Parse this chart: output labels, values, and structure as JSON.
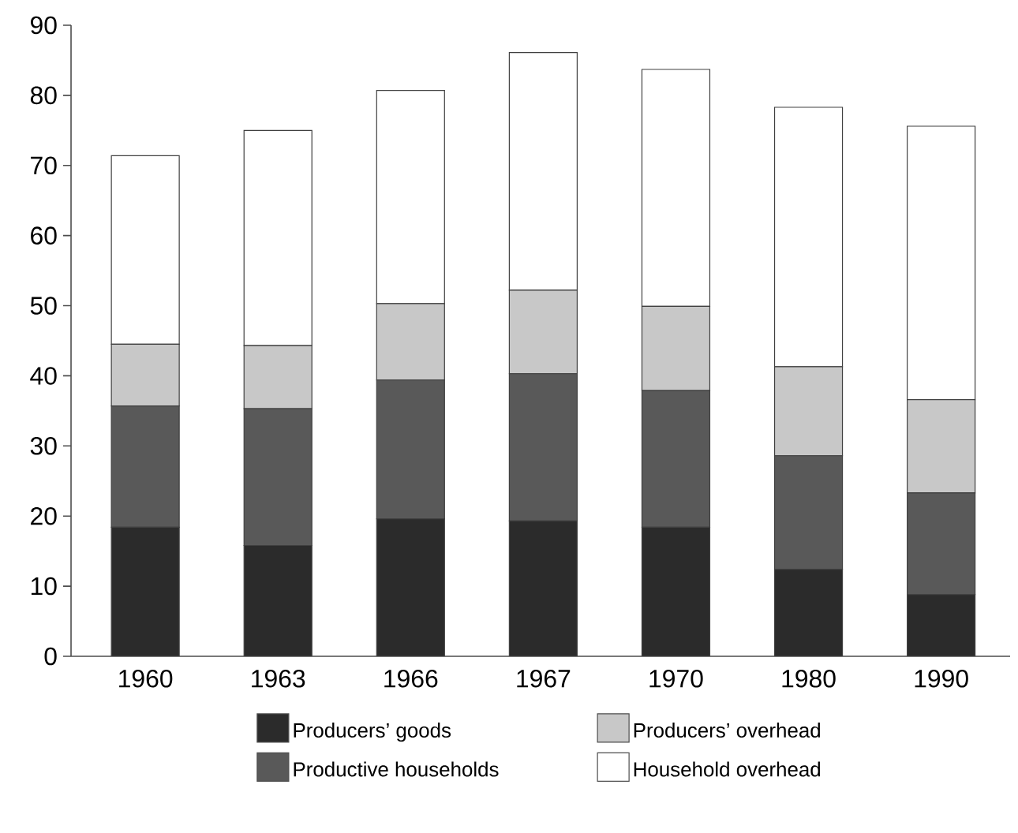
{
  "chart_data": {
    "type": "bar",
    "stacked": true,
    "categories": [
      "1960",
      "1963",
      "1966",
      "1967",
      "1970",
      "1980",
      "1990"
    ],
    "series": [
      {
        "name": "Producers’ goods",
        "color": "#2b2b2b",
        "values": [
          18.4,
          15.8,
          19.6,
          19.3,
          18.4,
          12.4,
          8.8
        ]
      },
      {
        "name": "Productive households",
        "color": "#595959",
        "values": [
          17.3,
          19.5,
          19.8,
          21.0,
          19.5,
          16.2,
          14.5
        ]
      },
      {
        "name": "Producers’ overhead",
        "color": "#c8c8c8",
        "values": [
          8.8,
          9.0,
          10.9,
          11.9,
          12.0,
          12.7,
          13.3
        ]
      },
      {
        "name": "Household overhead",
        "color": "#ffffff",
        "values": [
          26.9,
          30.7,
          30.4,
          33.9,
          33.8,
          37.0,
          39.0
        ]
      }
    ],
    "ylim": [
      0,
      90
    ],
    "yticks": [
      0,
      10,
      20,
      30,
      40,
      50,
      60,
      70,
      80,
      90
    ],
    "legend": "bottom",
    "grid": false
  }
}
